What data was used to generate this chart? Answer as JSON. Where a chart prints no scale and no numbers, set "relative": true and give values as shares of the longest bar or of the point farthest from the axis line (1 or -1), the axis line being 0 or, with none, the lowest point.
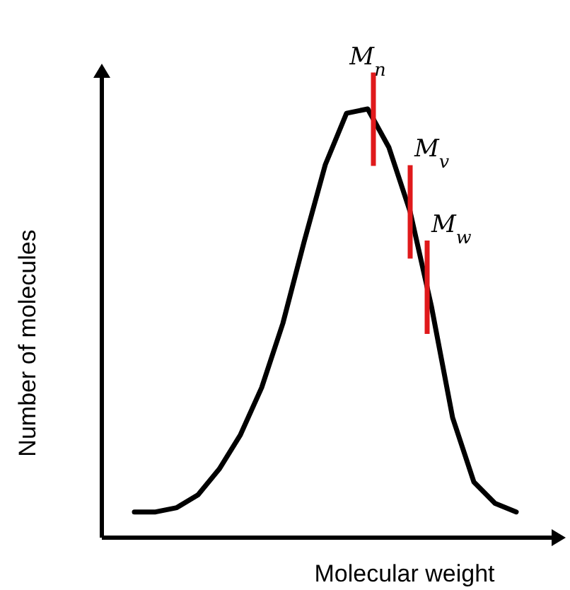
{
  "chart_data": {
    "type": "line",
    "relative": true,
    "xlabel": "Molecular weight",
    "ylabel": "Number of molecules",
    "line_style": "solid",
    "categories": [
      null,
      null,
      null,
      null,
      null,
      null,
      null,
      null,
      null,
      null,
      null,
      null,
      null,
      null,
      null,
      null,
      null,
      null,
      null
    ],
    "series": [
      {
        "color": "#000000",
        "values": [
          0.06,
          0.06,
          0.07,
          0.1,
          0.16,
          0.24,
          0.35,
          0.5,
          0.69,
          0.87,
          0.99,
          1.0,
          0.91,
          0.76,
          0.54,
          0.28,
          0.13,
          0.08,
          0.06
        ]
      }
    ],
    "annotations": [
      "M$_{n}$",
      "M$_{v}$",
      "M$_{w}$"
    ]
  }
}
